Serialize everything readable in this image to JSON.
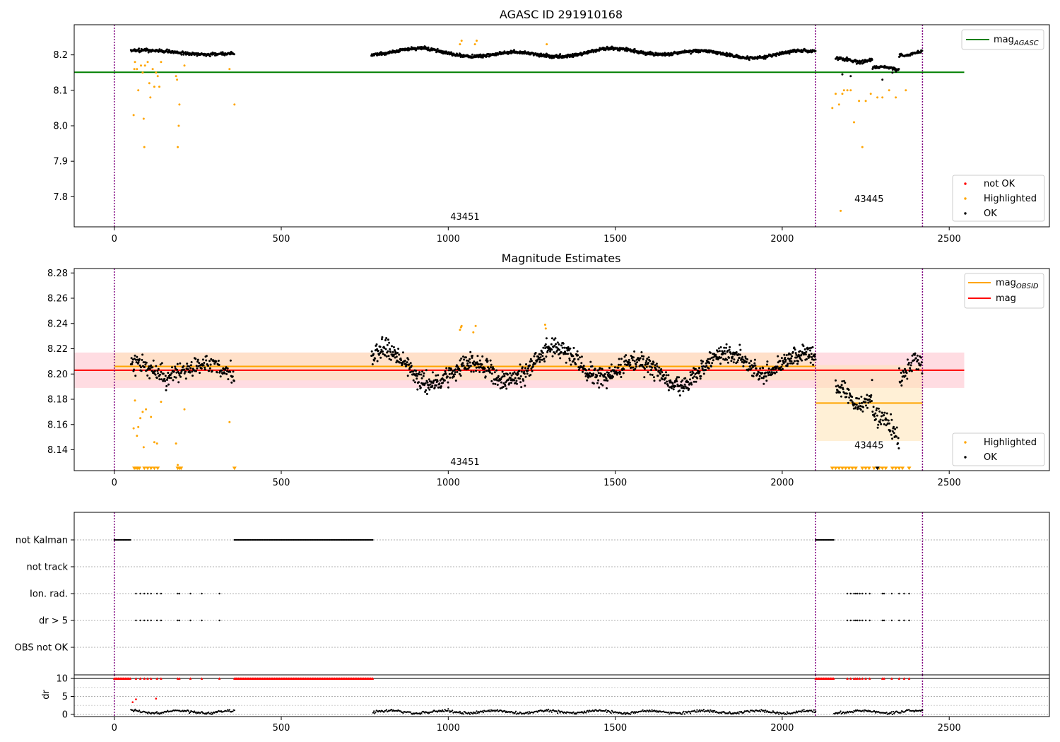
{
  "colors": {
    "ok": "#000000",
    "highlighted": "#ffa500",
    "not_ok": "#ff0000",
    "mag_agasc": "#008000",
    "mag_obsid": "#ffa500",
    "mag": "#ff0000",
    "obs_boundary": "#800080",
    "band_mag": "#ffc0cb",
    "band_obsid": "#ffe4b5"
  },
  "chart_data": [
    {
      "type": "scatter",
      "title": "AGASC ID 291910168",
      "xlabel": "",
      "ylabel": "",
      "xlim": [
        -120,
        2800
      ],
      "ylim": [
        7.715,
        8.285
      ],
      "xticks": [
        0,
        500,
        1000,
        1500,
        2000,
        2500
      ],
      "yticks": [
        7.8,
        7.9,
        8.0,
        8.1,
        8.2
      ],
      "obs_boundaries": [
        0,
        2100,
        2420
      ],
      "annotations": [
        {
          "text": "43451",
          "x": 1050,
          "y": 7.735
        },
        {
          "text": "43445",
          "x": 2260,
          "y": 7.785
        }
      ],
      "hlines": [
        {
          "name": "mag",
          "sub": "AGASC",
          "y": 8.151,
          "x0": -120,
          "x1": 2545,
          "color": "#008000"
        }
      ],
      "series": [
        {
          "name": "not OK",
          "marker": "dot",
          "color": "#ff0000",
          "points": []
        },
        {
          "name": "Highlighted",
          "marker": "dot",
          "color": "#ffa500",
          "points": [
            [
              58,
              8.03
            ],
            [
              60,
              8.16
            ],
            [
              62,
              8.18
            ],
            [
              68,
              8.16
            ],
            [
              72,
              8.1
            ],
            [
              80,
              8.17
            ],
            [
              85,
              8.15
            ],
            [
              88,
              8.02
            ],
            [
              90,
              7.94
            ],
            [
              92,
              8.17
            ],
            [
              100,
              8.18
            ],
            [
              105,
              8.12
            ],
            [
              108,
              8.08
            ],
            [
              115,
              8.16
            ],
            [
              120,
              8.11
            ],
            [
              125,
              8.15
            ],
            [
              130,
              8.14
            ],
            [
              135,
              8.11
            ],
            [
              140,
              8.18
            ],
            [
              185,
              8.14
            ],
            [
              188,
              8.13
            ],
            [
              190,
              7.94
            ],
            [
              193,
              8.0
            ],
            [
              195,
              8.06
            ],
            [
              210,
              8.17
            ],
            [
              345,
              8.16
            ],
            [
              360,
              8.06
            ],
            [
              1035,
              8.23
            ],
            [
              1040,
              8.24
            ],
            [
              1080,
              8.23
            ],
            [
              1085,
              8.24
            ],
            [
              1295,
              8.23
            ],
            [
              2150,
              8.05
            ],
            [
              2160,
              8.09
            ],
            [
              2170,
              8.06
            ],
            [
              2175,
              7.76
            ],
            [
              2180,
              8.09
            ],
            [
              2185,
              8.1
            ],
            [
              2195,
              8.1
            ],
            [
              2205,
              8.1
            ],
            [
              2215,
              8.01
            ],
            [
              2230,
              8.07
            ],
            [
              2240,
              7.94
            ],
            [
              2250,
              8.07
            ],
            [
              2265,
              8.09
            ],
            [
              2285,
              8.08
            ],
            [
              2300,
              8.08
            ],
            [
              2320,
              8.1
            ],
            [
              2340,
              8.08
            ],
            [
              2370,
              8.1
            ]
          ]
        },
        {
          "name": "OK",
          "marker": "dot",
          "color": "#000000",
          "points": []
        }
      ]
    },
    {
      "type": "scatter",
      "title": "Magnitude Estimates",
      "xlabel": "",
      "ylabel": "",
      "xlim": [
        -120,
        2800
      ],
      "ylim": [
        8.1235,
        8.2835
      ],
      "xticks": [
        0,
        500,
        1000,
        1500,
        2000,
        2500
      ],
      "yticks": [
        8.14,
        8.16,
        8.18,
        8.2,
        8.22,
        8.24,
        8.26,
        8.28
      ],
      "obs_boundaries": [
        0,
        2100,
        2420
      ],
      "annotations": [
        {
          "text": "43451",
          "x": 1050,
          "y": 8.128
        },
        {
          "text": "43445",
          "x": 2260,
          "y": 8.141
        }
      ],
      "bands": [
        {
          "y0": 8.189,
          "y1": 8.217,
          "x0": -120,
          "x1": 2545,
          "color": "#ffc0cb"
        },
        {
          "y0": 8.195,
          "y1": 8.217,
          "x0": 0,
          "x1": 2100,
          "color": "#ffe4b5"
        },
        {
          "y0": 8.147,
          "y1": 8.207,
          "x0": 2100,
          "x1": 2420,
          "color": "#ffe4b5"
        }
      ],
      "hlines": [
        {
          "name": "mag",
          "sub": "OBSID",
          "y": 8.206,
          "x0": 0,
          "x1": 2100,
          "color": "#ffa500"
        },
        {
          "name": "mag",
          "sub": "OBSID",
          "y": 8.177,
          "x0": 2100,
          "x1": 2420,
          "color": "#ffa500"
        },
        {
          "name": "mag",
          "sub": "",
          "y": 8.203,
          "x0": -120,
          "x1": 2545,
          "color": "#ff0000"
        }
      ],
      "series": [
        {
          "name": "Highlighted",
          "marker": "dot",
          "color": "#ffa500",
          "points": [
            [
              58,
              8.157
            ],
            [
              62,
              8.179
            ],
            [
              68,
              8.151
            ],
            [
              72,
              8.158
            ],
            [
              78,
              8.165
            ],
            [
              85,
              8.17
            ],
            [
              88,
              8.142
            ],
            [
              95,
              8.172
            ],
            [
              110,
              8.166
            ],
            [
              120,
              8.146
            ],
            [
              128,
              8.145
            ],
            [
              140,
              8.178
            ],
            [
              185,
              8.145
            ],
            [
              190,
              8.128
            ],
            [
              210,
              8.172
            ],
            [
              345,
              8.162
            ],
            [
              1035,
              8.235
            ],
            [
              1038,
              8.237
            ],
            [
              1040,
              8.238
            ],
            [
              1075,
              8.233
            ],
            [
              1082,
              8.238
            ],
            [
              1290,
              8.239
            ],
            [
              1292,
              8.236
            ]
          ]
        },
        {
          "name": "OK",
          "marker": "dot",
          "color": "#000000",
          "points": []
        }
      ],
      "lower_limits": {
        "y": 8.125,
        "x": [
          60,
          65,
          70,
          75,
          90,
          100,
          110,
          120,
          130,
          190,
          195,
          200,
          360,
          2150,
          2160,
          2170,
          2180,
          2190,
          2200,
          2210,
          2220,
          2240,
          2250,
          2260,
          2275,
          2290,
          2300,
          2310,
          2330,
          2340,
          2350,
          2360,
          2380
        ],
        "black_x": [
          2285
        ]
      }
    },
    {
      "type": "scatter",
      "title": "",
      "xlabel": "",
      "ylabel": "",
      "xlim": [
        -120,
        2800
      ],
      "categories": [
        "not Kalman",
        "not track",
        "Ion. rad.",
        "dr > 5",
        "OBS not OK"
      ],
      "xticks": [],
      "obs_boundaries": [
        0,
        2100,
        2420
      ],
      "flags": {
        "not Kalman": [
          [
            0,
            50
          ],
          [
            360,
            775
          ],
          [
            2100,
            2155
          ]
        ],
        "not track": [],
        "Ion. rad.": [
          65,
          78,
          90,
          100,
          110,
          128,
          140,
          190,
          195,
          228,
          262,
          315,
          2195,
          2205,
          2215,
          2220,
          2225,
          2232,
          2240,
          2250,
          2262,
          2300,
          2305,
          2328,
          2350,
          2365,
          2380
        ],
        "dr > 5": [
          65,
          78,
          90,
          100,
          110,
          128,
          140,
          190,
          195,
          228,
          262,
          315,
          2195,
          2205,
          2215,
          2220,
          2225,
          2232,
          2240,
          2250,
          2262,
          2300,
          2305,
          2328,
          2350,
          2365,
          2380
        ],
        "OBS not OK": []
      }
    },
    {
      "type": "scatter",
      "title": "",
      "xlabel": "",
      "ylabel": "dr",
      "xlim": [
        -120,
        2800
      ],
      "ylim": [
        -0.6,
        11
      ],
      "xticks": [
        0,
        500,
        1000,
        1500,
        2000,
        2500
      ],
      "yticks": [
        0,
        5,
        10
      ],
      "obs_boundaries": [
        0,
        2100,
        2420
      ],
      "clipped_at": 10,
      "clipped_x_segments": [
        [
          0,
          50
        ],
        [
          360,
          775
        ],
        [
          2100,
          2155
        ]
      ],
      "clipped_x_points": [
        65,
        78,
        90,
        100,
        110,
        128,
        140,
        190,
        195,
        228,
        262,
        315,
        2195,
        2205,
        2215,
        2220,
        2225,
        2232,
        2240,
        2250,
        2262,
        2300,
        2305,
        2328,
        2350,
        2365,
        2380
      ],
      "red_points": [
        [
          55,
          3.4
        ],
        [
          65,
          4.2
        ],
        [
          125,
          4.4
        ]
      ],
      "series_segments": [
        [
          50,
          360
        ],
        [
          775,
          2100
        ],
        [
          2155,
          2420
        ]
      ]
    }
  ],
  "legends": {
    "agasc_main": {
      "label": "mag",
      "sub": "AGASC"
    },
    "agasc_points": [
      "not OK",
      "Highlighted",
      "OK"
    ],
    "mag_main": [
      {
        "label": "mag",
        "sub": "OBSID"
      },
      {
        "label": "mag",
        "sub": ""
      }
    ],
    "mag_points": [
      "Highlighted",
      "OK"
    ]
  }
}
